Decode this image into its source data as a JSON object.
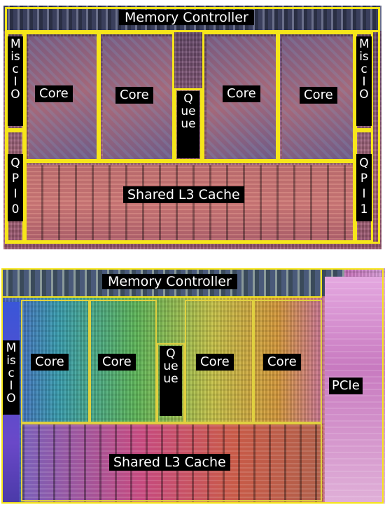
{
  "top_die": {
    "memory_controller": "Memory Controller",
    "misc_io_left": "Misc IO",
    "misc_io_right": "Misc IO",
    "qpi_left": "QPI 0",
    "qpi_right": "QPI 1",
    "cores": [
      "Core",
      "Core",
      "Core",
      "Core"
    ],
    "queue": "Queue",
    "l3_cache": "Shared L3 Cache"
  },
  "bottom_die": {
    "memory_controller": "Memory Controller",
    "misc_io": "Misc IO",
    "cores": [
      "Core",
      "Core",
      "Core",
      "Core"
    ],
    "queue": "Queue",
    "l3_cache": "Shared L3 Cache",
    "pcie": "PCIe"
  },
  "colors": {
    "outline": "#f6e61a",
    "label_bg": "#000000",
    "label_text": "#ffffff"
  }
}
